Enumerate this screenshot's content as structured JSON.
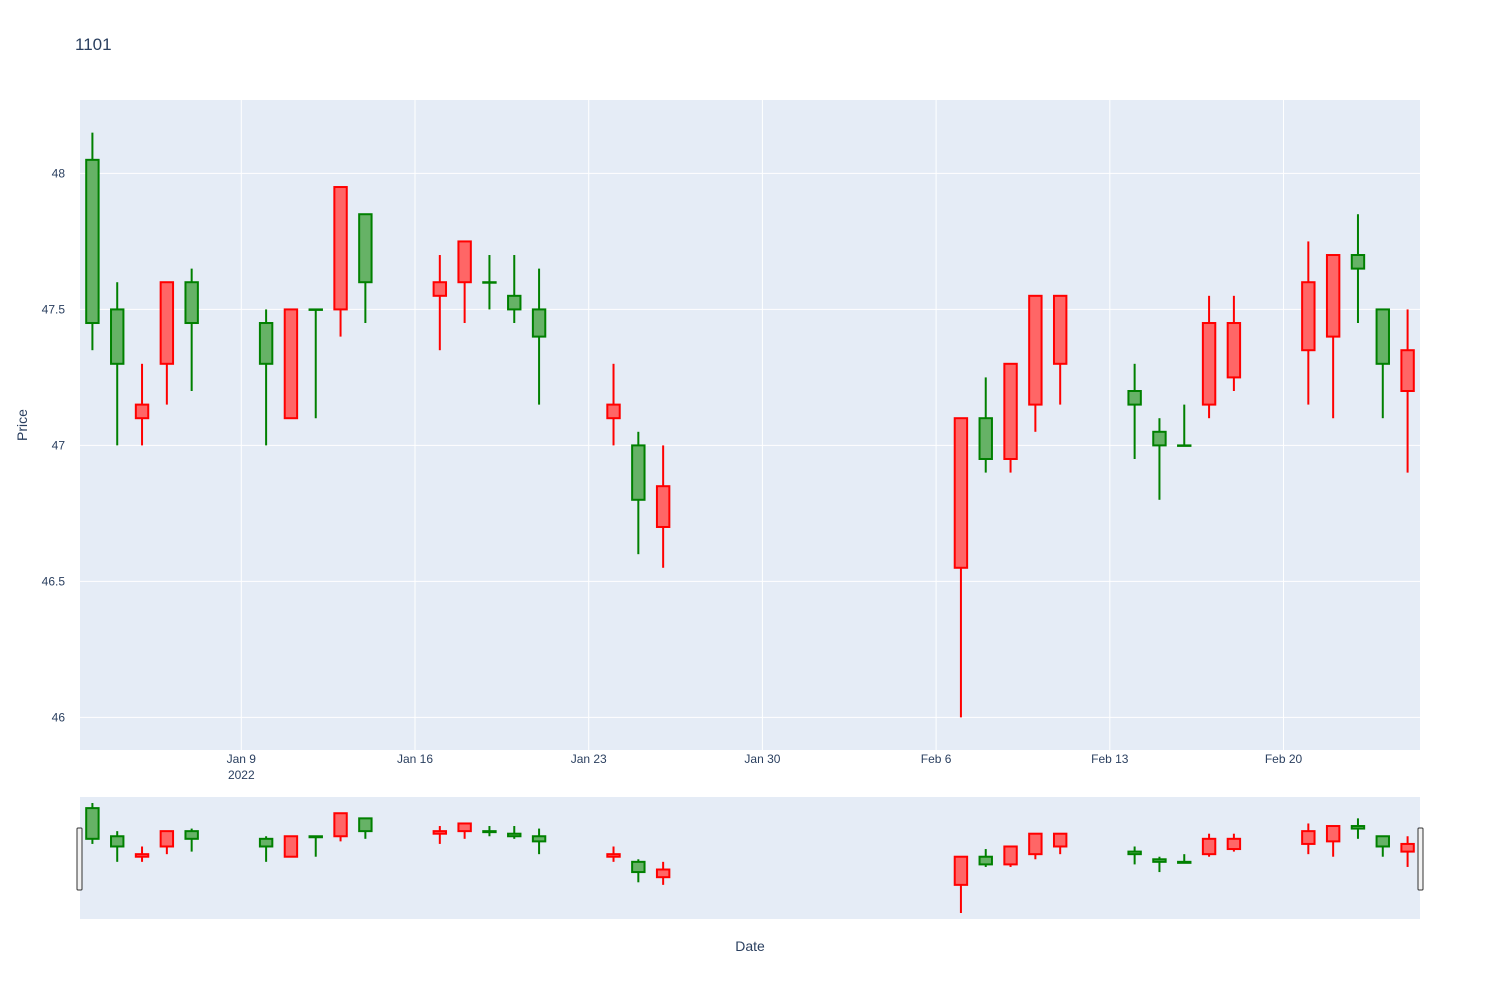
{
  "chart_data": {
    "type": "candlestick",
    "title": "1101",
    "xlabel": "Date",
    "ylabel": "Price",
    "ylim": [
      45.88,
      48.27
    ],
    "x_range": [
      "2022-01-02T12:00",
      "2022-02-25T12:00"
    ],
    "y_ticks": [
      "46",
      "46.5",
      "47",
      "47.5",
      "48"
    ],
    "x_ticks": [
      {
        "date": "2022-01-09",
        "label": "Jan 9",
        "sublabel": "2022"
      },
      {
        "date": "2022-01-16",
        "label": "Jan 16"
      },
      {
        "date": "2022-01-23",
        "label": "Jan 23"
      },
      {
        "date": "2022-01-30",
        "label": "Jan 30"
      },
      {
        "date": "2022-02-06",
        "label": "Feb 6"
      },
      {
        "date": "2022-02-13",
        "label": "Feb 13"
      },
      {
        "date": "2022-02-20",
        "label": "Feb 20"
      }
    ],
    "increasing_color": "#008000",
    "increasing_fill": "#66b266",
    "decreasing_color": "#ff0000",
    "decreasing_fill": "#ff6666",
    "plot_background": "#e5ecf6",
    "grid": true,
    "rangeslider": true,
    "candles": [
      {
        "date": "2022-01-03",
        "open": 47.45,
        "high": 48.15,
        "low": 47.35,
        "close": 48.05
      },
      {
        "date": "2022-01-04",
        "open": 47.3,
        "high": 47.6,
        "low": 47.0,
        "close": 47.5
      },
      {
        "date": "2022-01-05",
        "open": 47.15,
        "high": 47.3,
        "low": 47.0,
        "close": 47.1
      },
      {
        "date": "2022-01-06",
        "open": 47.6,
        "high": 47.6,
        "low": 47.15,
        "close": 47.3
      },
      {
        "date": "2022-01-07",
        "open": 47.45,
        "high": 47.65,
        "low": 47.2,
        "close": 47.6
      },
      {
        "date": "2022-01-10",
        "open": 47.3,
        "high": 47.5,
        "low": 47.0,
        "close": 47.45
      },
      {
        "date": "2022-01-11",
        "open": 47.5,
        "high": 47.5,
        "low": 47.1,
        "close": 47.1
      },
      {
        "date": "2022-01-12",
        "open": 47.5,
        "high": 47.5,
        "low": 47.1,
        "close": 47.5
      },
      {
        "date": "2022-01-13",
        "open": 47.95,
        "high": 47.95,
        "low": 47.4,
        "close": 47.5
      },
      {
        "date": "2022-01-14",
        "open": 47.6,
        "high": 47.85,
        "low": 47.45,
        "close": 47.85
      },
      {
        "date": "2022-01-17",
        "open": 47.6,
        "high": 47.7,
        "low": 47.35,
        "close": 47.55
      },
      {
        "date": "2022-01-18",
        "open": 47.75,
        "high": 47.75,
        "low": 47.45,
        "close": 47.6
      },
      {
        "date": "2022-01-19",
        "open": 47.6,
        "high": 47.7,
        "low": 47.5,
        "close": 47.6
      },
      {
        "date": "2022-01-20",
        "open": 47.5,
        "high": 47.7,
        "low": 47.45,
        "close": 47.55
      },
      {
        "date": "2022-01-21",
        "open": 47.4,
        "high": 47.65,
        "low": 47.15,
        "close": 47.5
      },
      {
        "date": "2022-01-24",
        "open": 47.15,
        "high": 47.3,
        "low": 47.0,
        "close": 47.1
      },
      {
        "date": "2022-01-25",
        "open": 46.8,
        "high": 47.05,
        "low": 46.6,
        "close": 47.0
      },
      {
        "date": "2022-01-26",
        "open": 46.85,
        "high": 47.0,
        "low": 46.55,
        "close": 46.7
      },
      {
        "date": "2022-02-07",
        "open": 47.1,
        "high": 47.1,
        "low": 46.0,
        "close": 46.55
      },
      {
        "date": "2022-02-08",
        "open": 46.95,
        "high": 47.25,
        "low": 46.9,
        "close": 47.1
      },
      {
        "date": "2022-02-09",
        "open": 47.3,
        "high": 47.3,
        "low": 46.9,
        "close": 46.95
      },
      {
        "date": "2022-02-10",
        "open": 47.55,
        "high": 47.55,
        "low": 47.05,
        "close": 47.15
      },
      {
        "date": "2022-02-11",
        "open": 47.55,
        "high": 47.55,
        "low": 47.15,
        "close": 47.3
      },
      {
        "date": "2022-02-14",
        "open": 47.15,
        "high": 47.3,
        "low": 46.95,
        "close": 47.2
      },
      {
        "date": "2022-02-15",
        "open": 47.0,
        "high": 47.1,
        "low": 46.8,
        "close": 47.05
      },
      {
        "date": "2022-02-16",
        "open": 47.0,
        "high": 47.15,
        "low": 47.0,
        "close": 47.0
      },
      {
        "date": "2022-02-17",
        "open": 47.45,
        "high": 47.55,
        "low": 47.1,
        "close": 47.15
      },
      {
        "date": "2022-02-18",
        "open": 47.45,
        "high": 47.55,
        "low": 47.2,
        "close": 47.25
      },
      {
        "date": "2022-02-21",
        "open": 47.6,
        "high": 47.75,
        "low": 47.15,
        "close": 47.35
      },
      {
        "date": "2022-02-22",
        "open": 47.7,
        "high": 47.7,
        "low": 47.1,
        "close": 47.4
      },
      {
        "date": "2022-02-23",
        "open": 47.65,
        "high": 47.85,
        "low": 47.45,
        "close": 47.7
      },
      {
        "date": "2022-02-24",
        "open": 47.3,
        "high": 47.5,
        "low": 47.1,
        "close": 47.5
      },
      {
        "date": "2022-02-25",
        "open": 47.35,
        "high": 47.5,
        "low": 46.9,
        "close": 47.2
      }
    ]
  }
}
